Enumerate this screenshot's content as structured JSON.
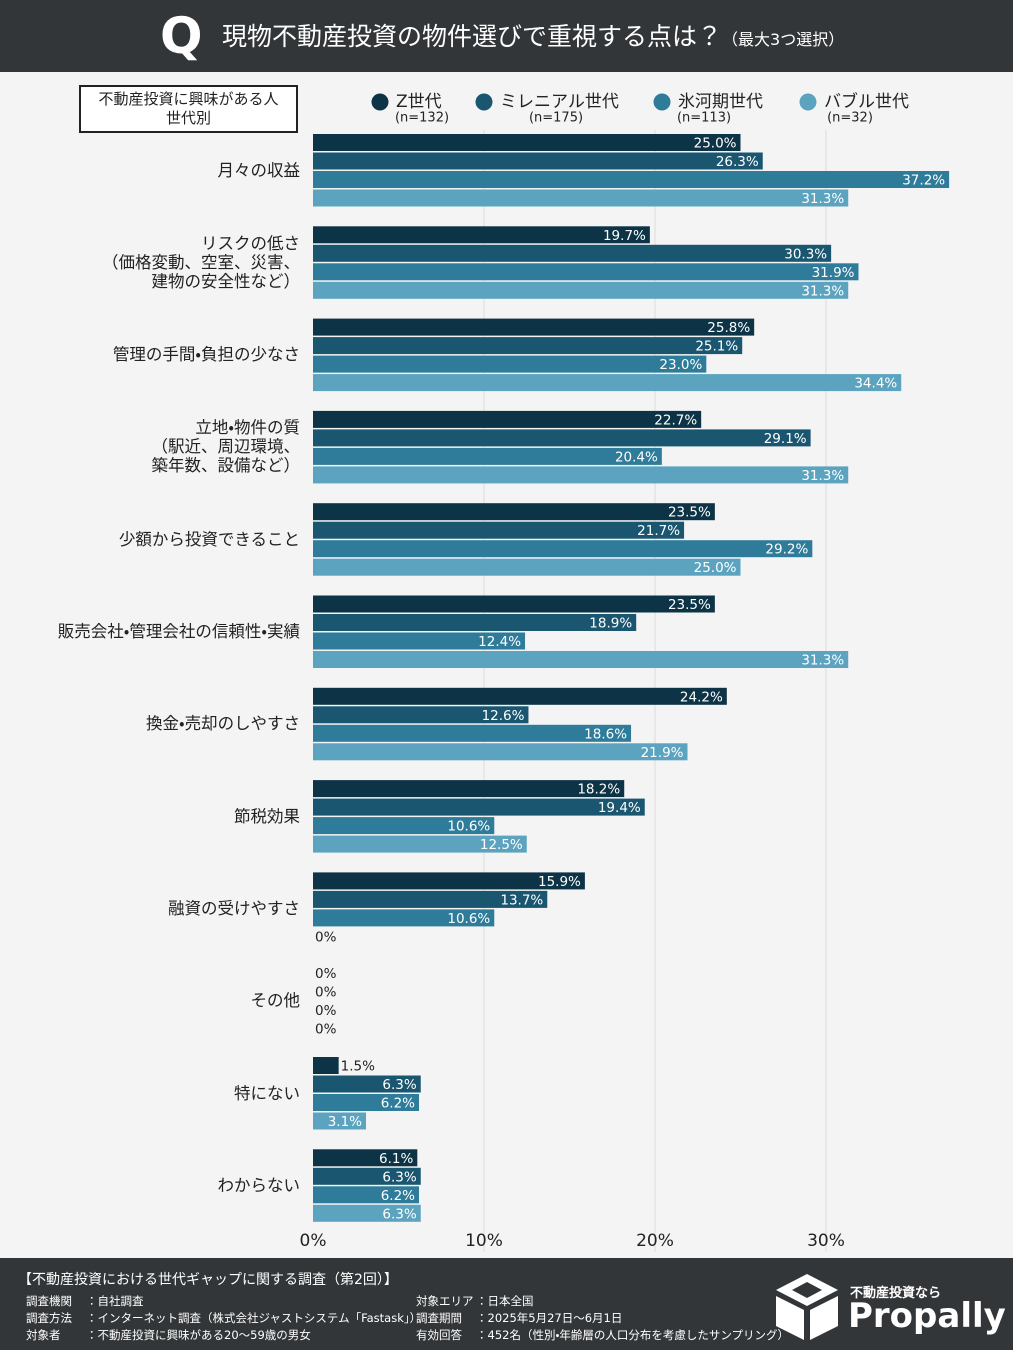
{
  "header": {
    "badge": "Q",
    "title": "現物不動産投資の物件選びで重視する点は？",
    "subtitle": "（最大3つ選択）"
  },
  "chart_data": {
    "type": "bar",
    "orientation": "horizontal",
    "group_label": "不動産投資に興味がある人\n世代別",
    "categories": [
      "月々の収益",
      "リスクの低さ\n（価格変動、空室、災害、\n建物の安全性など）",
      "管理の手間・負担の少なさ",
      "立地・物件の質\n（駅近、周辺環境、\n築年数、設備など）",
      "少額から投資できること",
      "販売会社・管理会社の信頼性・実績",
      "換金・売却のしやすさ",
      "節税効果",
      "融資の受けやすさ",
      "その他",
      "特にない",
      "わからない"
    ],
    "series": [
      {
        "name": "Z世代",
        "sample": "(n=132)",
        "color": "#0d3446",
        "values": [
          25.0,
          19.7,
          25.8,
          22.7,
          23.5,
          23.5,
          24.2,
          18.2,
          15.9,
          0,
          1.5,
          6.1
        ],
        "value_labels": [
          "25.0%",
          "19.7%",
          "25.8%",
          "22.7%",
          "23.5%",
          "23.5%",
          "24.2%",
          "18.2%",
          "15.9%",
          "0%",
          "1.5%",
          "6.1%"
        ]
      },
      {
        "name": "ミレニアル世代",
        "sample": "(n=175)",
        "color": "#1a5670",
        "values": [
          26.3,
          30.3,
          25.1,
          29.1,
          21.7,
          18.9,
          12.6,
          19.4,
          13.7,
          0,
          6.3,
          6.3
        ],
        "value_labels": [
          "26.3%",
          "30.3%",
          "25.1%",
          "29.1%",
          "21.7%",
          "18.9%",
          "12.6%",
          "19.4%",
          "13.7%",
          "0%",
          "6.3%",
          "6.3%"
        ]
      },
      {
        "name": "氷河期世代",
        "sample": "(n=113)",
        "color": "#2e7c9a",
        "values": [
          37.2,
          31.9,
          23.0,
          20.4,
          29.2,
          12.4,
          18.6,
          10.6,
          10.6,
          0,
          6.2,
          6.2
        ],
        "value_labels": [
          "37.2%",
          "31.9%",
          "23.0%",
          "20.4%",
          "29.2%",
          "12.4%",
          "18.6%",
          "10.6%",
          "10.6%",
          "0%",
          "6.2%",
          "6.2%"
        ]
      },
      {
        "name": "バブル世代",
        "sample": "(n=32)",
        "color": "#5ba3bf",
        "values": [
          31.3,
          31.3,
          34.4,
          31.3,
          25.0,
          31.3,
          21.9,
          12.5,
          0,
          0,
          3.1,
          6.3
        ],
        "value_labels": [
          "31.3%",
          "31.3%",
          "34.4%",
          "31.3%",
          "25.0%",
          "31.3%",
          "21.9%",
          "12.5%",
          "0%",
          "0%",
          "3.1%",
          "6.3%"
        ]
      }
    ],
    "xlim": [
      0,
      40
    ],
    "xticks": [
      {
        "value": 0,
        "label": "0%"
      },
      {
        "value": 10,
        "label": "10%"
      },
      {
        "value": 20,
        "label": "20%"
      },
      {
        "value": 30,
        "label": "30%"
      }
    ],
    "grid": true
  },
  "footer": {
    "title": "【不動産投資における世代ギャップに関する調査（第2回）】",
    "left": [
      [
        "調査機関",
        "：自社調査"
      ],
      [
        "調査方法",
        "：インターネット調査（株式会社ジャストシステム「Fastask」）"
      ],
      [
        "対象者",
        "：不動産投資に興味がある20〜59歳の男女"
      ]
    ],
    "right": [
      [
        "対象エリア",
        "：日本全国"
      ],
      [
        "調査期間",
        "：2025年5月27日〜6月1日"
      ],
      [
        "有効回答",
        "：452名（性別・年齢層の人口分布を考慮したサンプリング）"
      ]
    ],
    "logo_tagline": "不動産投資なら",
    "logo_name": "Propally"
  }
}
